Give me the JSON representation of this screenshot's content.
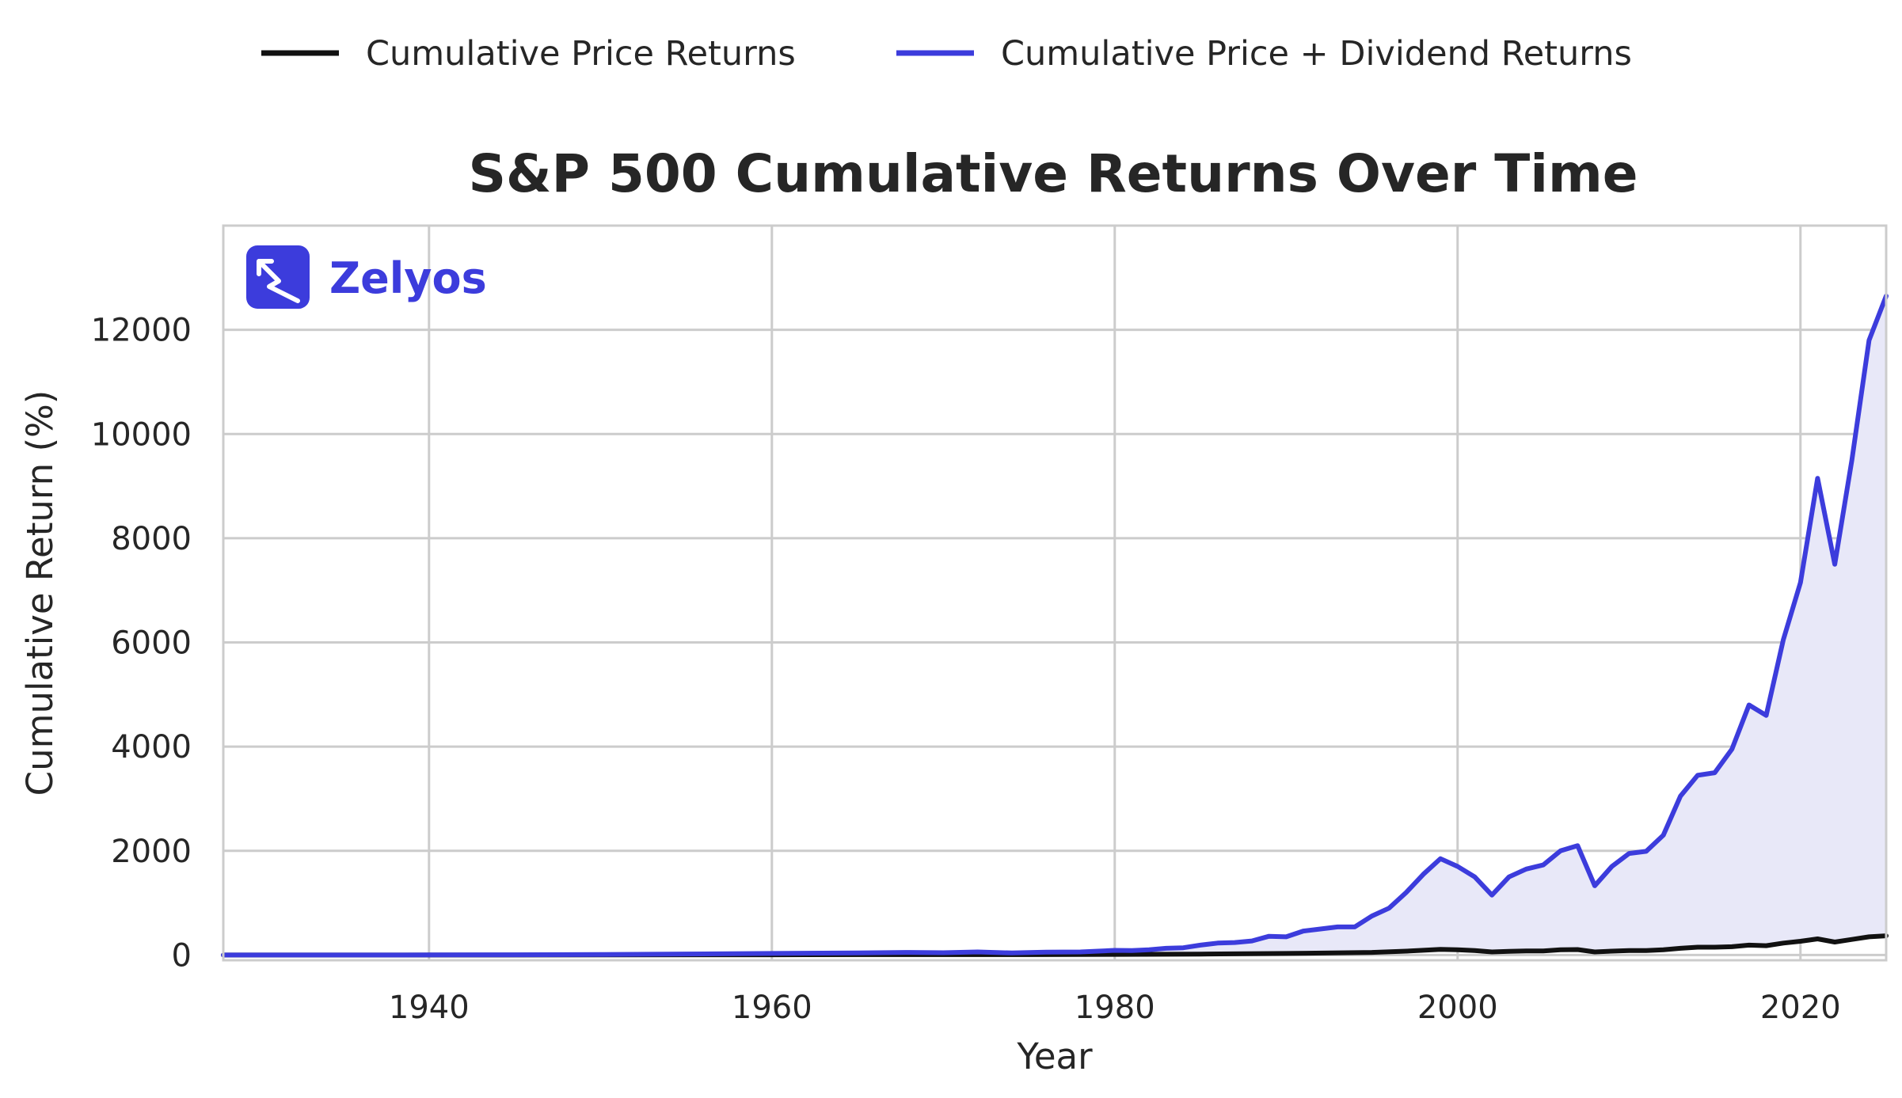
{
  "chart_data": {
    "type": "line",
    "title": "S&P 500 Cumulative Returns Over Time",
    "xlabel": "Year",
    "ylabel": "Cumulative Return (%)",
    "xlim": [
      1928,
      2025
    ],
    "ylim": [
      -100,
      14000
    ],
    "x_ticks": [
      1940,
      1960,
      1980,
      2000,
      2020
    ],
    "y_ticks": [
      0,
      2000,
      4000,
      6000,
      8000,
      10000,
      12000
    ],
    "grid": true,
    "legend_position": "top-center",
    "brand": "Zelyos",
    "colors": {
      "Cumulative Price Returns": "#111111",
      "Cumulative Price + Dividend Returns": "#3c3cdc",
      "fill": "#e8e8f8",
      "grid": "#cccccc",
      "spine": "#cccccc",
      "brand": "#3c3cdc"
    },
    "series": [
      {
        "name": "Cumulative Price Returns",
        "points": [
          [
            1928,
            0
          ],
          [
            1940,
            0
          ],
          [
            1950,
            2
          ],
          [
            1960,
            5
          ],
          [
            1965,
            8
          ],
          [
            1970,
            8
          ],
          [
            1975,
            8
          ],
          [
            1980,
            12
          ],
          [
            1985,
            18
          ],
          [
            1990,
            30
          ],
          [
            1995,
            50
          ],
          [
            1997,
            75
          ],
          [
            1999,
            110
          ],
          [
            2000,
            100
          ],
          [
            2001,
            85
          ],
          [
            2002,
            60
          ],
          [
            2003,
            70
          ],
          [
            2004,
            78
          ],
          [
            2005,
            80
          ],
          [
            2006,
            100
          ],
          [
            2007,
            105
          ],
          [
            2008,
            60
          ],
          [
            2009,
            75
          ],
          [
            2010,
            85
          ],
          [
            2011,
            85
          ],
          [
            2012,
            100
          ],
          [
            2013,
            130
          ],
          [
            2014,
            150
          ],
          [
            2015,
            150
          ],
          [
            2016,
            160
          ],
          [
            2017,
            190
          ],
          [
            2018,
            180
          ],
          [
            2019,
            230
          ],
          [
            2020,
            265
          ],
          [
            2021,
            310
          ],
          [
            2022,
            250
          ],
          [
            2023,
            300
          ],
          [
            2024,
            350
          ],
          [
            2025,
            370
          ]
        ]
      },
      {
        "name": "Cumulative Price + Dividend Returns",
        "points": [
          [
            1928,
            0
          ],
          [
            1935,
            0
          ],
          [
            1940,
            2
          ],
          [
            1945,
            5
          ],
          [
            1950,
            10
          ],
          [
            1955,
            20
          ],
          [
            1960,
            30
          ],
          [
            1965,
            40
          ],
          [
            1968,
            50
          ],
          [
            1970,
            45
          ],
          [
            1972,
            60
          ],
          [
            1974,
            40
          ],
          [
            1976,
            55
          ],
          [
            1978,
            60
          ],
          [
            1980,
            90
          ],
          [
            1981,
            85
          ],
          [
            1982,
            100
          ],
          [
            1983,
            130
          ],
          [
            1984,
            140
          ],
          [
            1985,
            190
          ],
          [
            1986,
            230
          ],
          [
            1987,
            240
          ],
          [
            1988,
            270
          ],
          [
            1989,
            360
          ],
          [
            1990,
            350
          ],
          [
            1991,
            460
          ],
          [
            1992,
            500
          ],
          [
            1993,
            540
          ],
          [
            1994,
            540
          ],
          [
            1995,
            750
          ],
          [
            1996,
            900
          ],
          [
            1997,
            1200
          ],
          [
            1998,
            1550
          ],
          [
            1999,
            1850
          ],
          [
            2000,
            1700
          ],
          [
            2001,
            1500
          ],
          [
            2002,
            1150
          ],
          [
            2003,
            1500
          ],
          [
            2004,
            1650
          ],
          [
            2005,
            1730
          ],
          [
            2006,
            2000
          ],
          [
            2007,
            2100
          ],
          [
            2008,
            1330
          ],
          [
            2009,
            1700
          ],
          [
            2010,
            1950
          ],
          [
            2011,
            1990
          ],
          [
            2012,
            2300
          ],
          [
            2013,
            3050
          ],
          [
            2014,
            3450
          ],
          [
            2015,
            3500
          ],
          [
            2016,
            3950
          ],
          [
            2017,
            4800
          ],
          [
            2018,
            4600
          ],
          [
            2019,
            6050
          ],
          [
            2020,
            7150
          ],
          [
            2021,
            9150
          ],
          [
            2022,
            7500
          ],
          [
            2023,
            9500
          ],
          [
            2024,
            11800
          ],
          [
            2025,
            12650
          ]
        ]
      }
    ]
  }
}
